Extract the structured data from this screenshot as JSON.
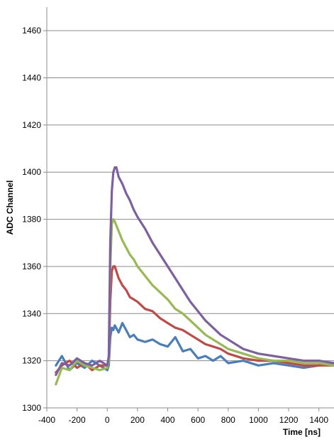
{
  "chart_data": {
    "type": "line",
    "title": "",
    "xlabel": "Time [ns]",
    "ylabel": "ADC Channel",
    "xlim": [
      -400,
      1500
    ],
    "ylim": [
      1300,
      1470
    ],
    "x_ticks": [
      -400,
      -200,
      0,
      200,
      400,
      600,
      800,
      1000,
      1200,
      1400
    ],
    "x_tick_labels": [
      "-400",
      "-200",
      "0",
      "200",
      "400",
      "600",
      "800",
      "1000",
      "1200",
      "1400"
    ],
    "y_ticks": [
      1300,
      1320,
      1340,
      1360,
      1380,
      1400,
      1420,
      1440,
      1460
    ],
    "y_tick_labels": [
      "1300",
      "1320",
      "1340",
      "1360",
      "1380",
      "1400",
      "1420",
      "1440",
      "1460"
    ],
    "grid": "horizontal",
    "legend": "none",
    "series": [
      {
        "color": "#4a7ebb",
        "x": [
          -340,
          -300,
          -250,
          -200,
          -150,
          -100,
          -50,
          0,
          10,
          20,
          30,
          40,
          50,
          75,
          100,
          125,
          150,
          175,
          200,
          250,
          300,
          350,
          400,
          450,
          500,
          550,
          600,
          650,
          700,
          750,
          800,
          900,
          1000,
          1100,
          1200,
          1300,
          1400,
          1500
        ],
        "y": [
          1318,
          1322,
          1316,
          1319,
          1317,
          1320,
          1318,
          1316,
          1318,
          1330,
          1334,
          1333,
          1335,
          1332,
          1336,
          1333,
          1330,
          1331,
          1329,
          1328,
          1329,
          1327,
          1326,
          1330,
          1324,
          1325,
          1321,
          1322,
          1320,
          1322,
          1319,
          1320,
          1318,
          1319,
          1318,
          1317,
          1318,
          1319
        ]
      },
      {
        "color": "#be4b48",
        "x": [
          -340,
          -300,
          -250,
          -200,
          -150,
          -100,
          -50,
          0,
          10,
          20,
          30,
          40,
          50,
          75,
          100,
          125,
          150,
          175,
          200,
          250,
          300,
          350,
          400,
          450,
          500,
          550,
          600,
          650,
          700,
          750,
          800,
          900,
          1000,
          1100,
          1200,
          1300,
          1400,
          1500
        ],
        "y": [
          1315,
          1318,
          1320,
          1317,
          1319,
          1316,
          1318,
          1318,
          1320,
          1345,
          1358,
          1360,
          1360,
          1355,
          1352,
          1350,
          1347,
          1346,
          1345,
          1342,
          1341,
          1338,
          1336,
          1334,
          1333,
          1331,
          1329,
          1327,
          1326,
          1325,
          1323,
          1321,
          1320,
          1320,
          1319,
          1318,
          1318,
          1318
        ]
      },
      {
        "color": "#98b954",
        "x": [
          -340,
          -300,
          -250,
          -200,
          -150,
          -100,
          -50,
          0,
          10,
          20,
          30,
          40,
          50,
          75,
          100,
          125,
          150,
          175,
          200,
          250,
          300,
          350,
          400,
          450,
          500,
          550,
          600,
          650,
          700,
          750,
          800,
          900,
          1000,
          1100,
          1200,
          1300,
          1400,
          1500
        ],
        "y": [
          1310,
          1317,
          1316,
          1320,
          1318,
          1317,
          1316,
          1317,
          1320,
          1360,
          1378,
          1380,
          1379,
          1375,
          1371,
          1368,
          1365,
          1363,
          1360,
          1356,
          1352,
          1349,
          1346,
          1342,
          1340,
          1337,
          1334,
          1331,
          1329,
          1327,
          1325,
          1323,
          1321,
          1320,
          1320,
          1319,
          1319,
          1318
        ]
      },
      {
        "color": "#7d60a0",
        "x": [
          -340,
          -300,
          -250,
          -200,
          -150,
          -100,
          -50,
          0,
          10,
          20,
          30,
          40,
          50,
          60,
          75,
          100,
          125,
          150,
          175,
          200,
          250,
          300,
          350,
          400,
          450,
          500,
          550,
          600,
          650,
          700,
          750,
          800,
          900,
          1000,
          1100,
          1200,
          1300,
          1400,
          1500
        ],
        "y": [
          1314,
          1319,
          1318,
          1321,
          1319,
          1318,
          1320,
          1318,
          1322,
          1370,
          1392,
          1400,
          1402,
          1402,
          1398,
          1395,
          1391,
          1388,
          1384,
          1381,
          1376,
          1370,
          1365,
          1360,
          1355,
          1350,
          1345,
          1341,
          1337,
          1334,
          1331,
          1329,
          1325,
          1323,
          1322,
          1321,
          1320,
          1320,
          1319
        ]
      }
    ]
  }
}
